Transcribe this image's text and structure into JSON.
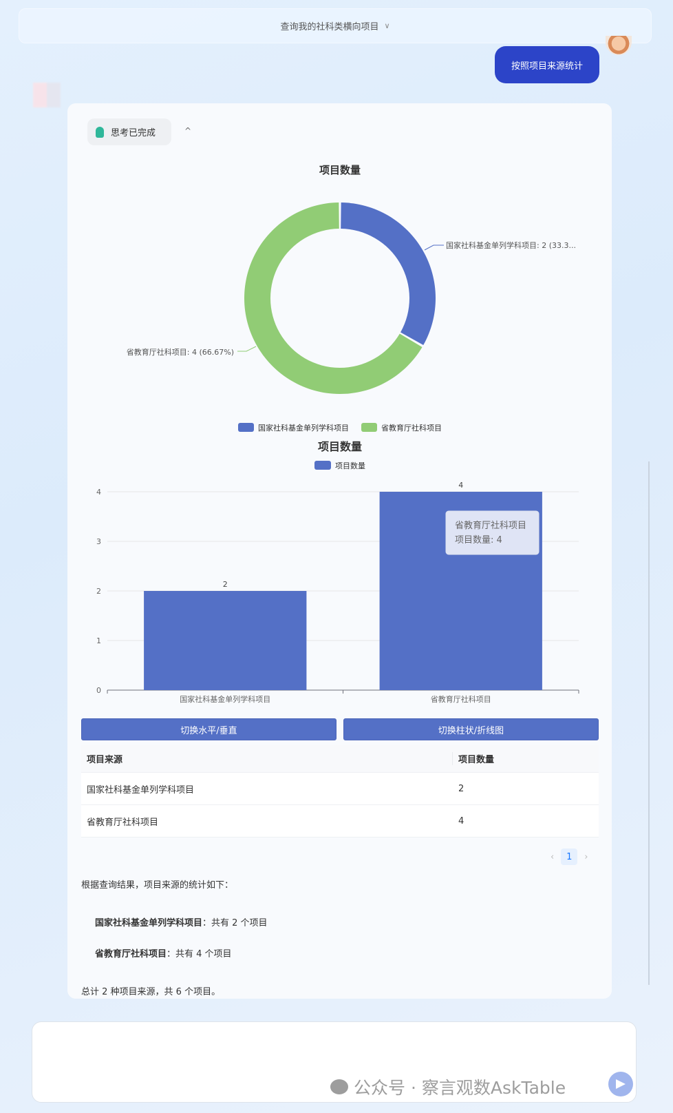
{
  "header": {
    "title": "查询我的社科类横向项目",
    "chevron": "chevron-down-icon"
  },
  "user_message": "按照项目来源统计",
  "thinking": {
    "label": "思考已完成",
    "icon": "lightbulb-icon"
  },
  "colors": {
    "blue": "#5470c6",
    "green": "#91cc75",
    "accent": "#2c44c8"
  },
  "chart_data": [
    {
      "type": "pie",
      "donut": true,
      "title": "项目数量",
      "categories": [
        "国家社科基金单列学科项目",
        "省教育厅社科项目"
      ],
      "values": [
        2,
        4
      ],
      "labels": [
        "国家社科基金单列学科项目: 2 (33.3...",
        "省教育厅社科项目: 4 (66.67%)"
      ],
      "legend": "bottom"
    },
    {
      "type": "bar",
      "title": "项目数量",
      "categories": [
        "国家社科基金单列学科项目",
        "省教育厅社科项目"
      ],
      "series": [
        {
          "name": "项目数量",
          "values": [
            2,
            4
          ]
        }
      ],
      "yticks": [
        "0",
        "1",
        "2",
        "3",
        "4"
      ],
      "ylim": [
        0,
        4
      ],
      "grid": true,
      "legend": "top",
      "tooltip": {
        "title": "省教育厅社科项目",
        "line": "项目数量: 4"
      }
    }
  ],
  "buttons": {
    "toggle_orientation": "切换水平/垂直",
    "toggle_type": "切换柱状/折线图"
  },
  "table": {
    "headers": [
      "项目来源",
      "项目数量"
    ],
    "rows": [
      [
        "国家社科基金单列学科项目",
        "2"
      ],
      [
        "省教育厅社科项目",
        "4"
      ]
    ]
  },
  "pagination": {
    "current": "1"
  },
  "summary": {
    "intro": "根据查询结果，项目来源的统计如下：",
    "items": [
      {
        "bold": "国家社科基金单列学科项目",
        "rest": "：共有 2 个项目"
      },
      {
        "bold": "省教育厅社科项目",
        "rest": "：共有 4 个项目"
      }
    ],
    "total": "总计 2 种项目来源，共 6 个项目。"
  },
  "watermark": "公众号 · 察言观数AskTable"
}
